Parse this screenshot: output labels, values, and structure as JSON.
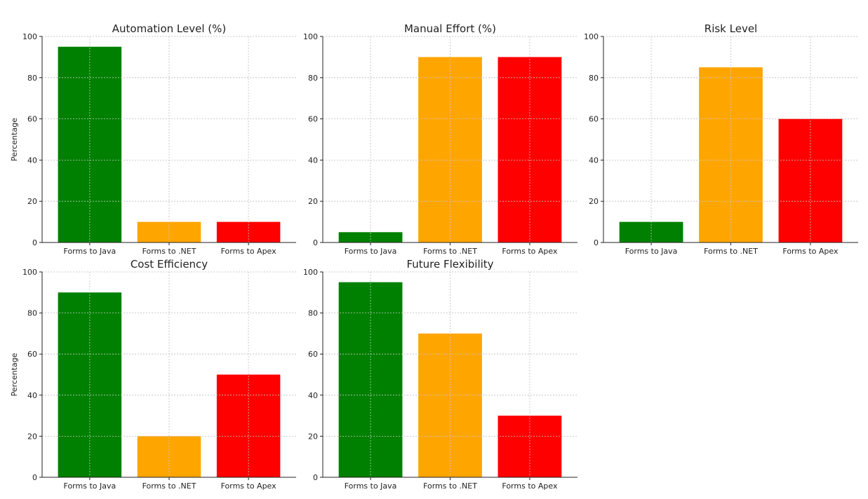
{
  "chart_data": [
    {
      "type": "bar",
      "title": "Automation Level (%)",
      "ylabel": "Percentage",
      "xlabel": "",
      "categories": [
        "Forms to Java",
        "Forms to .NET",
        "Forms to Apex"
      ],
      "values": [
        95,
        10,
        10
      ],
      "colors": [
        "#008000",
        "#FFA500",
        "#FF0000"
      ],
      "ylim": [
        0,
        100
      ],
      "yticks": [
        "0",
        "20",
        "40",
        "60",
        "80",
        "100"
      ],
      "grid": true
    },
    {
      "type": "bar",
      "title": "Manual Effort (%)",
      "ylabel": "",
      "xlabel": "",
      "categories": [
        "Forms to Java",
        "Forms to .NET",
        "Forms to Apex"
      ],
      "values": [
        5,
        90,
        90
      ],
      "colors": [
        "#008000",
        "#FFA500",
        "#FF0000"
      ],
      "ylim": [
        0,
        100
      ],
      "yticks": [
        "0",
        "20",
        "40",
        "60",
        "80",
        "100"
      ],
      "grid": true
    },
    {
      "type": "bar",
      "title": "Risk Level",
      "ylabel": "",
      "xlabel": "",
      "categories": [
        "Forms to Java",
        "Forms to .NET",
        "Forms to Apex"
      ],
      "values": [
        10,
        85,
        60
      ],
      "colors": [
        "#008000",
        "#FFA500",
        "#FF0000"
      ],
      "ylim": [
        0,
        100
      ],
      "yticks": [
        "0",
        "20",
        "40",
        "60",
        "80",
        "100"
      ],
      "grid": true
    },
    {
      "type": "bar",
      "title": "Cost Efficiency",
      "ylabel": "Percentage",
      "xlabel": "",
      "categories": [
        "Forms to Java",
        "Forms to .NET",
        "Forms to Apex"
      ],
      "values": [
        90,
        20,
        50
      ],
      "colors": [
        "#008000",
        "#FFA500",
        "#FF0000"
      ],
      "ylim": [
        0,
        100
      ],
      "yticks": [
        "0",
        "20",
        "40",
        "60",
        "80",
        "100"
      ],
      "grid": true
    },
    {
      "type": "bar",
      "title": "Future Flexibility",
      "ylabel": "",
      "xlabel": "",
      "categories": [
        "Forms to Java",
        "Forms to .NET",
        "Forms to Apex"
      ],
      "values": [
        95,
        70,
        30
      ],
      "colors": [
        "#008000",
        "#FFA500",
        "#FF0000"
      ],
      "ylim": [
        0,
        100
      ],
      "yticks": [
        "0",
        "20",
        "40",
        "60",
        "80",
        "100"
      ],
      "grid": true
    }
  ]
}
